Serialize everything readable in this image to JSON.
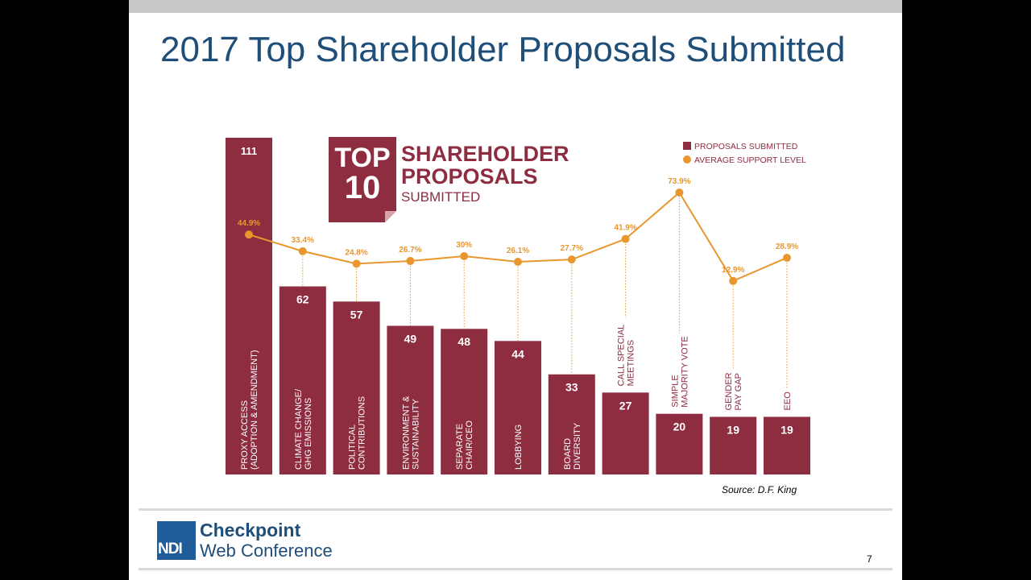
{
  "slide": {
    "title": "2017 Top Shareholder Proposals Submitted",
    "source": "Source: D.F. King",
    "page_number": "7"
  },
  "logo": {
    "mark": "NDI",
    "name": "Checkpoint",
    "subtitle": "Web Conference"
  },
  "badge": {
    "top": "TOP",
    "ten": "10",
    "line1": "SHAREHOLDER",
    "line2": "PROPOSALS",
    "line3": "SUBMITTED"
  },
  "colors": {
    "bar": "#8e2c40",
    "line": "#e8972e",
    "title": "#1f4e79"
  },
  "chart_data": {
    "type": "bar",
    "title": "TOP 10 SHAREHOLDER PROPOSALS SUBMITTED",
    "categories": [
      [
        "PROXY ACCESS",
        "(ADOPTION & AMENDMENT)"
      ],
      [
        "CLIMATE CHANGE/",
        "GHG EMISSIONS"
      ],
      [
        "POLITICAL",
        "CONTRIBUTIONS"
      ],
      [
        "ENVIRONMENT &",
        "SUSTAINABILITY"
      ],
      [
        "SEPARATE",
        "CHAIR/CEO"
      ],
      [
        "LOBBYING"
      ],
      [
        "BOARD",
        "DIVERSITY"
      ],
      [
        "CALL SPECIAL",
        "MEETINGS"
      ],
      [
        "SIMPLE",
        "MAJORITY VOTE"
      ],
      [
        "GENDER",
        "PAY GAP"
      ],
      [
        "EEO"
      ]
    ],
    "series": [
      {
        "name": "PROPOSALS SUBMITTED",
        "kind": "bar",
        "values": [
          111,
          62,
          57,
          49,
          48,
          44,
          33,
          27,
          20,
          19,
          19
        ],
        "labels": [
          "111",
          "62",
          "57",
          "49",
          "48",
          "44",
          "33",
          "27",
          "20",
          "19",
          "19"
        ]
      },
      {
        "name": "AVERAGE SUPPORT LEVEL",
        "kind": "line",
        "values": [
          44.9,
          33.4,
          24.8,
          26.7,
          30,
          26.1,
          27.7,
          41.9,
          73.9,
          12.9,
          28.9
        ],
        "labels": [
          "44.9%",
          "33.4%",
          "24.8%",
          "26.7%",
          "30%",
          "26.1%",
          "27.7%",
          "41.9%",
          "73.9%",
          "12.9%",
          "28.9%"
        ]
      }
    ],
    "legend": [
      "PROPOSALS SUBMITTED",
      "AVERAGE SUPPORT LEVEL"
    ],
    "legend_position": "top-right",
    "ylim_bar": [
      0,
      111
    ],
    "ylim_line": [
      0,
      100
    ],
    "grid": false
  }
}
